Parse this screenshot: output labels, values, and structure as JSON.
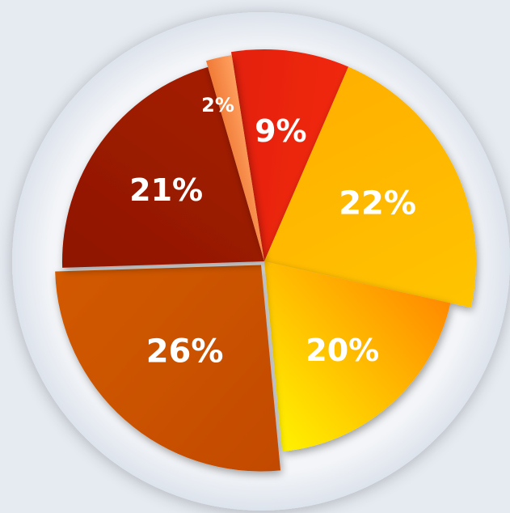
{
  "chart_data": {
    "type": "pie",
    "start_angle_deg": -99,
    "direction": "clockwise",
    "exploded": true,
    "slices": [
      {
        "label": "9%",
        "value": 9,
        "color": "#e3200c",
        "color_light": "#f0290f"
      },
      {
        "label": "22%",
        "value": 22,
        "color": "#ffb000",
        "color_light": "#ffc400"
      },
      {
        "label": "20%",
        "value": 20,
        "color": "#ff8a00",
        "color_light": "#fff200"
      },
      {
        "label": "26%",
        "value": 26,
        "color": "#c24a04",
        "color_light": "#d25a00"
      },
      {
        "label": "21%",
        "value": 21,
        "color": "#8e1600",
        "color_light": "#a41e00"
      },
      {
        "label": "2%",
        "value": 2,
        "color": "#f07a36",
        "color_light": "#ffa060"
      }
    ]
  }
}
